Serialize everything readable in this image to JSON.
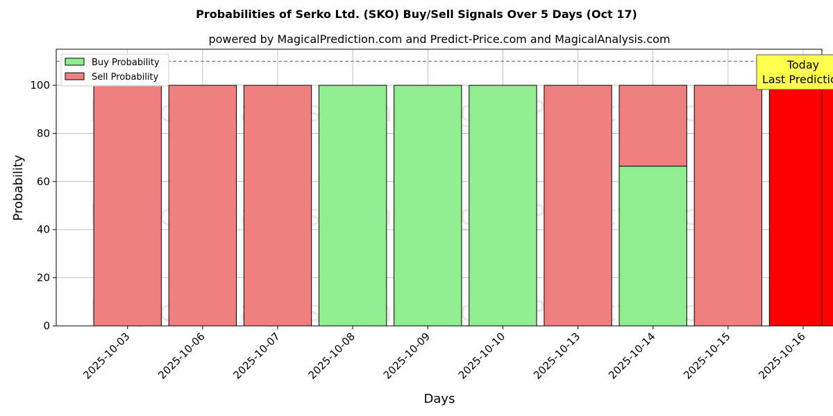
{
  "chart_data": {
    "type": "bar",
    "title": "Probabilities of Serko Ltd. (SKO) Buy/Sell Signals Over 5 Days (Oct 17)",
    "subtitle": "powered by MagicalPrediction.com and Predict-Price.com and MagicalAnalysis.com",
    "xlabel": "Days",
    "ylabel": "Probability",
    "ylim": [
      0,
      115
    ],
    "yticks": [
      0,
      20,
      40,
      60,
      80,
      100
    ],
    "grid": true,
    "stacked": true,
    "legend_position": "top-left",
    "categories": [
      "2025-10-03",
      "2025-10-06",
      "2025-10-07",
      "2025-10-08",
      "2025-10-09",
      "2025-10-10",
      "2025-10-13",
      "2025-10-14",
      "2025-10-15",
      "2025-10-16"
    ],
    "series": [
      {
        "name": "Buy Probability",
        "color": "#90ee90",
        "values": [
          0,
          0,
          0,
          100,
          100,
          100,
          0,
          66.4,
          0,
          0
        ]
      },
      {
        "name": "Sell Probability",
        "color": "#f08080",
        "values": [
          100,
          100,
          100,
          0,
          0,
          0,
          100,
          33.6,
          100,
          100
        ]
      }
    ],
    "highlight": {
      "category": "2025-10-16",
      "color": "#ff0000"
    },
    "reference_line": {
      "y": 110,
      "style": "dashed",
      "color": "#808080"
    },
    "annotation": {
      "lines": [
        "Today",
        "Last Prediction"
      ],
      "category": "2025-10-16",
      "color": "#ffff4d"
    },
    "watermarks": [
      "MagicalAnalysis.com",
      "MagicalPrediction.com"
    ]
  }
}
